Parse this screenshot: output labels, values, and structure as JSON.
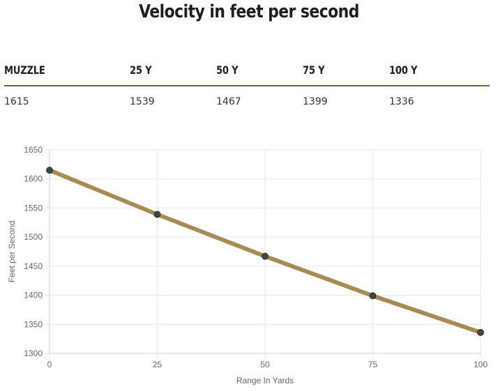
{
  "title": "Velocity in feet per second",
  "table": {
    "headers": [
      "MUZZLE",
      "25 Y",
      "50 Y",
      "75 Y",
      "100 Y"
    ],
    "values": [
      "1615",
      "1539",
      "1467",
      "1399",
      "1336"
    ]
  },
  "chart_data": {
    "type": "line",
    "x": [
      0,
      25,
      50,
      75,
      100
    ],
    "series": [
      {
        "values": [
          1615,
          1539,
          1467,
          1399,
          1336
        ]
      }
    ],
    "xlabel": "Range In Yards",
    "ylabel": "Feet per Second",
    "xlim": [
      0,
      100
    ],
    "ylim": [
      1300,
      1650
    ],
    "x_ticks": [
      0,
      25,
      50,
      75,
      100
    ],
    "y_ticks": [
      1300,
      1350,
      1400,
      1450,
      1500,
      1550,
      1600,
      1650
    ],
    "grid": true,
    "line_color": "#a68b52",
    "point_color": "#444444",
    "grid_color": "#e6e6e6"
  }
}
